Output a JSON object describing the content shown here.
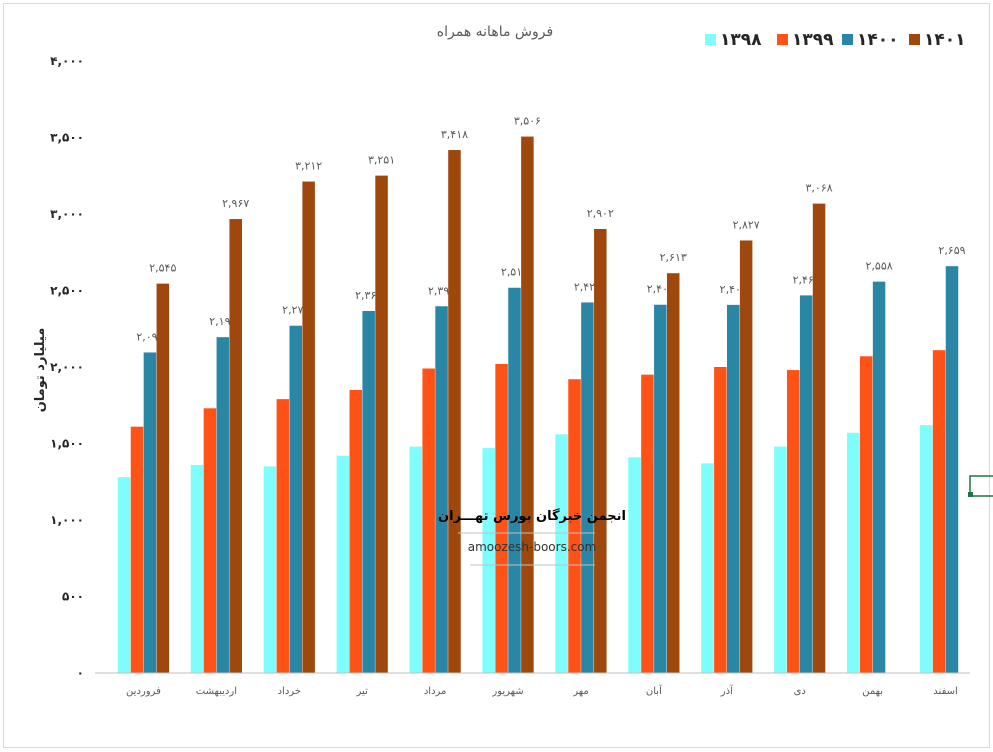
{
  "chart_data": {
    "type": "bar",
    "title": "فروش ماهانه همراه",
    "ylabel": "میلیارد تومان",
    "xlabel": "",
    "ylim": [
      0,
      4000
    ],
    "yticks": [
      "۰",
      "۵۰۰",
      "۱,۰۰۰",
      "۱,۵۰۰",
      "۲,۰۰۰",
      "۲,۵۰۰",
      "۳,۰۰۰",
      "۳,۵۰۰",
      "۴,۰۰۰"
    ],
    "grid": false,
    "legend_position": "top-right",
    "categories": [
      "فروردین",
      "اردیبهشت",
      "خرداد",
      "تیر",
      "مرداد",
      "شهریور",
      "مهر",
      "آبان",
      "آذر",
      "دی",
      "بهمن",
      "اسفند"
    ],
    "series": [
      {
        "name": "۱۳۹۸",
        "color": "#7ffcfc",
        "values": [
          1280,
          1360,
          1350,
          1420,
          1480,
          1470,
          1560,
          1410,
          1370,
          1480,
          1570,
          1620
        ],
        "labels": null
      },
      {
        "name": "۱۳۹۹",
        "color": "#ff5216",
        "values": [
          1610,
          1730,
          1790,
          1850,
          1990,
          2020,
          1920,
          1950,
          2000,
          1980,
          2070,
          2110
        ],
        "labels": null
      },
      {
        "name": "۱۴۰۰",
        "color": "#2a86a5",
        "values": [
          2095,
          2195,
          2270,
          2366,
          2397,
          2518,
          2422,
          2407,
          2406,
          2468,
          2558,
          2659
        ],
        "labels": [
          "۲,۰۹۵",
          "۲,۱۹۵",
          "۲,۲۷۰",
          "۲,۳۶۶",
          "۲,۳۹۷",
          "۲,۵۱۸",
          "۲,۴۲۲",
          "۲,۴۰۷",
          "۲,۴۰۶",
          "۲,۴۶۸",
          "۲,۵۵۸",
          "۲,۶۵۹"
        ]
      },
      {
        "name": "۱۴۰۱",
        "color": "#9e480e",
        "values": [
          2545,
          2967,
          3212,
          3251,
          3418,
          3506,
          2902,
          2613,
          2827,
          3068,
          null,
          null
        ],
        "labels": [
          "۲,۵۴۵",
          "۲,۹۶۷",
          "۳,۲۱۲",
          "۳,۲۵۱",
          "۳,۴۱۸",
          "۳,۵۰۶",
          "۲,۹۰۲",
          "۲,۶۱۳",
          "۲,۸۲۷",
          "۳,۰۶۸",
          null,
          null
        ]
      }
    ]
  },
  "watermark": {
    "title": "انجمن خبرگان بورس تهـــران",
    "url": "amoozesh-boors.com"
  }
}
